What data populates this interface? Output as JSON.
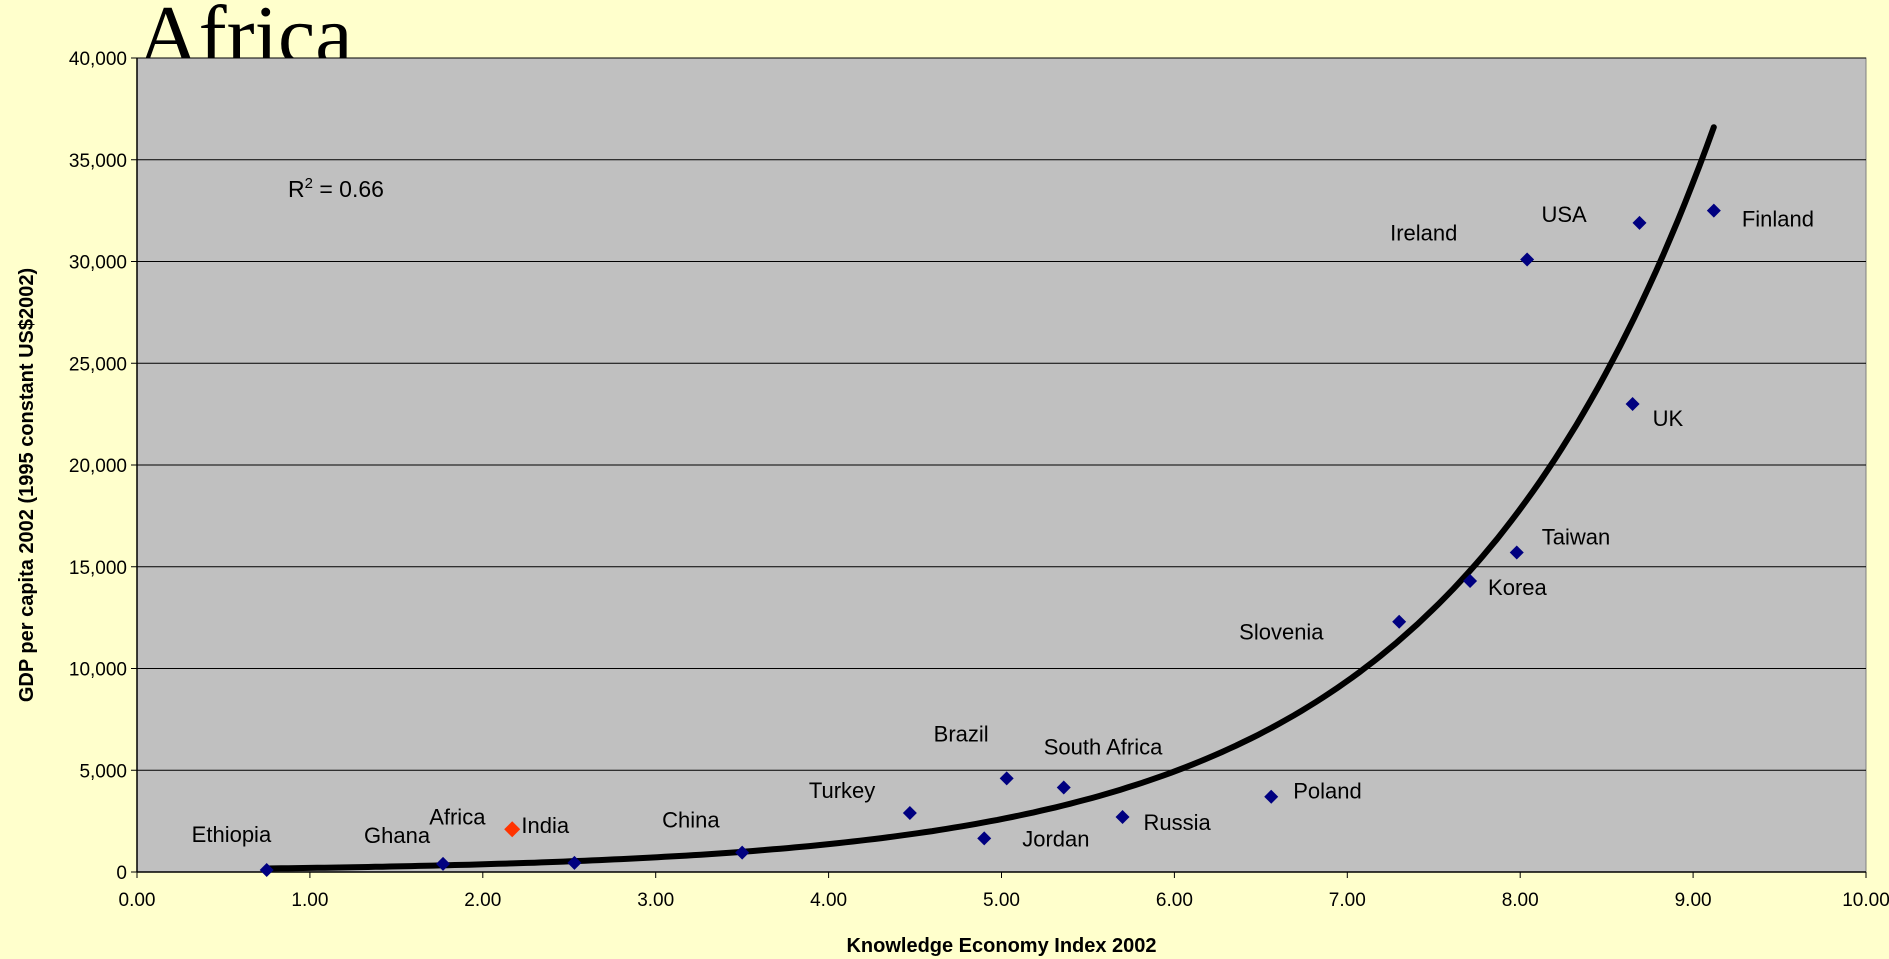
{
  "page": {
    "title": "Africa"
  },
  "chart_data": {
    "type": "scatter",
    "title": "Africa",
    "xlabel": "Knowledge Economy Index 2002",
    "ylabel": "GDP per capita 2002 (1995 constant US$2002)",
    "xlim": [
      0,
      10
    ],
    "ylim": [
      0,
      40000
    ],
    "xticks": [
      "0.00",
      "1.00",
      "2.00",
      "3.00",
      "4.00",
      "5.00",
      "6.00",
      "7.00",
      "8.00",
      "9.00",
      "10.00"
    ],
    "yticks": [
      "0",
      "5,000",
      "10,000",
      "15,000",
      "20,000",
      "25,000",
      "30,000",
      "35,000",
      "40,000"
    ],
    "grid": "horizontal",
    "annotation": {
      "r2_prefix": "R",
      "r2_sup": "2",
      "r2_value": " = 0.66"
    },
    "trendline": {
      "type": "exponential",
      "x_start": 0.75,
      "x_end": 9.12,
      "y_start": 170,
      "y_end": 36600
    },
    "colors": {
      "plot_bg": "#c0c0c0",
      "marker": "#000080",
      "highlight": "#ff3300",
      "highlight_label": "#ff0000",
      "trend": "#000000"
    },
    "points": [
      {
        "label": "Ethiopia",
        "x": 0.75,
        "y": 100
      },
      {
        "label": "Ghana",
        "x": 1.77,
        "y": 400
      },
      {
        "label": "India",
        "x": 2.53,
        "y": 450
      },
      {
        "label": "China",
        "x": 3.5,
        "y": 950
      },
      {
        "label": "Turkey",
        "x": 4.47,
        "y": 2900
      },
      {
        "label": "Jordan",
        "x": 4.9,
        "y": 1650
      },
      {
        "label": "Brazil",
        "x": 5.03,
        "y": 4600
      },
      {
        "label": "South Africa",
        "x": 5.36,
        "y": 4150
      },
      {
        "label": "Russia",
        "x": 5.7,
        "y": 2700
      },
      {
        "label": "Poland",
        "x": 6.56,
        "y": 3700
      },
      {
        "label": "Slovenia",
        "x": 7.3,
        "y": 12300
      },
      {
        "label": "Korea",
        "x": 7.71,
        "y": 14300
      },
      {
        "label": "Taiwan",
        "x": 7.98,
        "y": 15700
      },
      {
        "label": "Ireland",
        "x": 8.04,
        "y": 30100
      },
      {
        "label": "UK",
        "x": 8.65,
        "y": 23000
      },
      {
        "label": "USA",
        "x": 8.69,
        "y": 31900
      },
      {
        "label": "Finland",
        "x": 9.12,
        "y": 32500
      }
    ],
    "highlight_point": {
      "label": "Africa",
      "x": 2.17,
      "y": 2100
    }
  }
}
